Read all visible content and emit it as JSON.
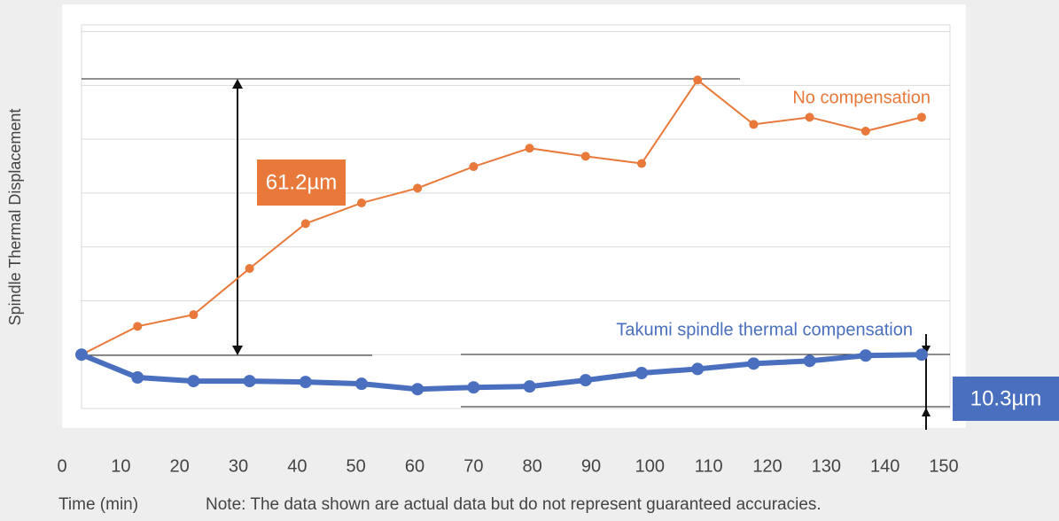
{
  "chart_data": {
    "type": "line",
    "y_label": "Spindle Thermal Displacement",
    "x_label": "Time (min)",
    "note": "Note: The data shown are actual data but do not represent guaranteed accuracies.",
    "x": [
      0,
      10,
      20,
      30,
      40,
      50,
      60,
      70,
      80,
      90,
      100,
      110,
      120,
      130,
      140,
      150
    ],
    "xlim": [
      0,
      150
    ],
    "xticks": [
      0,
      10,
      20,
      30,
      40,
      50,
      60,
      70,
      80,
      90,
      100,
      110,
      120,
      130,
      140,
      150
    ],
    "ylim": [
      -12,
      73.5
    ],
    "yticks": [
      -12,
      0,
      12,
      24,
      36,
      48,
      60,
      72
    ],
    "grid": true,
    "series": [
      {
        "name": "No compensation",
        "color": "#e8793a",
        "values": [
          0,
          6.3,
          8.9,
          19.2,
          29.2,
          33.8,
          37.1,
          41.9,
          46.0,
          44.2,
          42.6,
          61.2,
          51.3,
          52.9,
          49.8,
          52.9
        ]
      },
      {
        "name": "Takumi spindle thermal compensation",
        "color": "#4a6fbf",
        "values": [
          0,
          -5.1,
          -5.9,
          -5.9,
          -6.1,
          -6.5,
          -7.7,
          -7.3,
          -7.1,
          -5.7,
          -4.1,
          -3.2,
          -2.0,
          -1.4,
          -0.2,
          0
        ]
      }
    ],
    "annotations": [
      "61.2µm",
      "10.3µm"
    ]
  }
}
